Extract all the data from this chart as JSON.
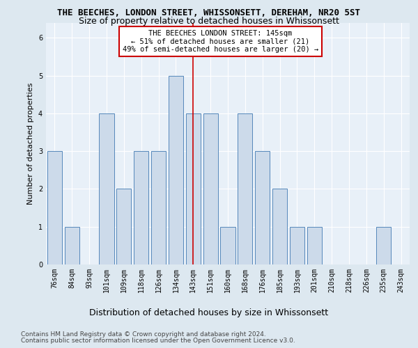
{
  "title": "THE BEECHES, LONDON STREET, WHISSONSETT, DEREHAM, NR20 5ST",
  "subtitle": "Size of property relative to detached houses in Whissonsett",
  "xlabel": "Distribution of detached houses by size in Whissonsett",
  "ylabel": "Number of detached properties",
  "categories": [
    "76sqm",
    "84sqm",
    "93sqm",
    "101sqm",
    "109sqm",
    "118sqm",
    "126sqm",
    "134sqm",
    "143sqm",
    "151sqm",
    "160sqm",
    "168sqm",
    "176sqm",
    "185sqm",
    "193sqm",
    "201sqm",
    "210sqm",
    "218sqm",
    "226sqm",
    "235sqm",
    "243sqm"
  ],
  "values": [
    3,
    1,
    0,
    4,
    2,
    3,
    3,
    5,
    4,
    4,
    1,
    4,
    3,
    2,
    1,
    1,
    0,
    0,
    0,
    1,
    0
  ],
  "bar_color": "#ccdaea",
  "bar_edge_color": "#5588bb",
  "vline_index": 8,
  "vline_color": "#cc0000",
  "ylim": [
    0,
    6.4
  ],
  "yticks": [
    0,
    1,
    2,
    3,
    4,
    5,
    6
  ],
  "annotation_text": "THE BEECHES LONDON STREET: 145sqm\n← 51% of detached houses are smaller (21)\n49% of semi-detached houses are larger (20) →",
  "annotation_box_facecolor": "#ffffff",
  "annotation_box_edgecolor": "#cc0000",
  "footer1": "Contains HM Land Registry data © Crown copyright and database right 2024.",
  "footer2": "Contains public sector information licensed under the Open Government Licence v3.0.",
  "bg_color": "#dde8f0",
  "plot_bg_color": "#e8f0f8",
  "title_fontsize": 9,
  "subtitle_fontsize": 9,
  "xlabel_fontsize": 9,
  "ylabel_fontsize": 8,
  "tick_fontsize": 7,
  "annotation_fontsize": 7.5,
  "footer_fontsize": 6.5
}
